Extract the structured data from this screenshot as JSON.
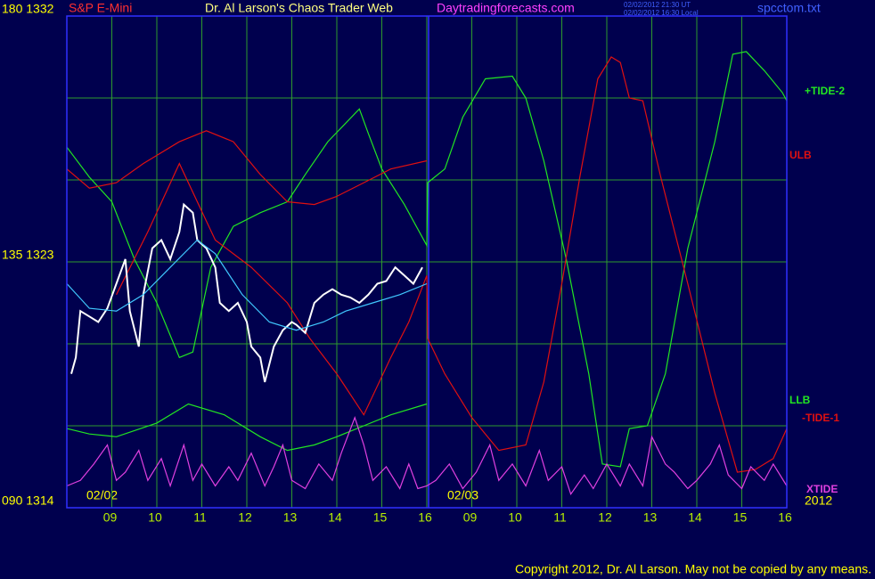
{
  "chart_data": {
    "type": "line",
    "title": "Dr. Al Larson's Chaos Trader Web",
    "instrument": "S&P E-Mini",
    "site": "Daytradingforecasts.com",
    "timestamps": [
      "02/02/2012 21:30 UT",
      "02/02/2012 16:30 Local"
    ],
    "file": "spcctom.txt",
    "date_labels": [
      "02/02",
      "02/03"
    ],
    "year": "2012",
    "copyright": "Copyright 2012, Dr. Al Larson. May not be copied by any means.",
    "xlim": [
      0,
      16
    ],
    "xticks": [
      {
        "value": 1,
        "label": "09"
      },
      {
        "value": 2,
        "label": "10"
      },
      {
        "value": 3,
        "label": "11"
      },
      {
        "value": 4,
        "label": "12"
      },
      {
        "value": 5,
        "label": "13"
      },
      {
        "value": 6,
        "label": "14"
      },
      {
        "value": 7,
        "label": "15"
      },
      {
        "value": 8,
        "label": "16"
      },
      {
        "value": 9,
        "label": "09"
      },
      {
        "value": 10,
        "label": "10"
      },
      {
        "value": 11,
        "label": "11"
      },
      {
        "value": 12,
        "label": "12"
      },
      {
        "value": 13,
        "label": "13"
      },
      {
        "value": 14,
        "label": "14"
      },
      {
        "value": 15,
        "label": "15"
      },
      {
        "value": 16,
        "label": "16"
      }
    ],
    "ylim": [
      1314,
      1332
    ],
    "yticks": [
      {
        "value": 1314,
        "label": "090 1314"
      },
      {
        "value": 1317,
        "label": null
      },
      {
        "value": 1320,
        "label": null
      },
      {
        "value": 1323,
        "label": "135 1323"
      },
      {
        "value": 1326,
        "label": null
      },
      {
        "value": 1329,
        "label": null
      },
      {
        "value": 1332,
        "label": "180 1332"
      }
    ],
    "grid": true,
    "series": [
      {
        "name": "+TIDE-2",
        "color": "#22e622",
        "x": [
          0,
          0.5,
          1.0,
          1.5,
          2.0,
          2.5,
          2.8,
          3.2,
          3.7,
          4.3,
          4.9,
          5.3,
          5.8,
          6.5,
          6.7,
          7.0,
          7.5,
          8.0,
          8.02,
          8.4,
          8.8,
          9.3,
          9.9,
          10.2,
          10.6,
          11.1,
          11.6,
          11.9,
          12.3,
          12.5,
          12.9,
          13.3,
          13.8,
          14.4,
          14.8,
          15.1,
          15.5,
          15.9,
          16.0
        ],
        "values": [
          1327.2,
          1326.1,
          1325.2,
          1323.1,
          1321.5,
          1319.5,
          1319.7,
          1322.8,
          1324.3,
          1324.8,
          1325.2,
          1326.2,
          1327.4,
          1328.6,
          1327.7,
          1326.4,
          1325.1,
          1323.6,
          1325.9,
          1326.4,
          1328.3,
          1329.7,
          1329.8,
          1329.0,
          1326.7,
          1323.1,
          1318.9,
          1315.6,
          1315.5,
          1316.9,
          1317.0,
          1318.9,
          1323.5,
          1327.4,
          1330.6,
          1330.7,
          1330.0,
          1329.2,
          1328.9
        ]
      },
      {
        "name": "ULB",
        "color": "#e01010",
        "x": [
          0,
          0.5,
          1.1,
          1.7,
          2.5,
          3.1,
          3.7,
          4.3,
          4.9,
          5.5,
          6.0,
          6.6,
          7.2,
          8.0
        ],
        "values": [
          1326.4,
          1325.7,
          1325.9,
          1326.6,
          1327.4,
          1327.8,
          1327.4,
          1326.2,
          1325.2,
          1325.1,
          1325.4,
          1325.9,
          1326.4,
          1326.7
        ]
      },
      {
        "name": "LLB",
        "color": "#22e622",
        "x": [
          0,
          0.5,
          1.1,
          2.0,
          2.7,
          3.5,
          4.3,
          4.9,
          5.5,
          6.0,
          6.6,
          7.2,
          8.0
        ],
        "values": [
          1316.9,
          1316.7,
          1316.6,
          1317.1,
          1317.8,
          1317.4,
          1316.6,
          1316.1,
          1316.3,
          1316.6,
          1317.0,
          1317.4,
          1317.8
        ]
      },
      {
        "name": "-TIDE-1",
        "color": "#e01010",
        "x": [
          1.1,
          1.8,
          2.5,
          3.3,
          4.1,
          4.9,
          5.4,
          6.0,
          6.6,
          7.2,
          7.6,
          8.0,
          8.02,
          8.4,
          9.0,
          9.6,
          10.2,
          10.6,
          11.0,
          11.4,
          11.8,
          12.1,
          12.3,
          12.5,
          12.8,
          13.2,
          13.8,
          14.4,
          14.9,
          15.3,
          15.7,
          16.0
        ],
        "values": [
          1321.8,
          1324.1,
          1326.6,
          1323.8,
          1322.8,
          1321.5,
          1320.2,
          1318.9,
          1317.4,
          1319.5,
          1320.8,
          1322.5,
          1320.2,
          1318.9,
          1317.3,
          1316.1,
          1316.3,
          1318.6,
          1322.2,
          1326.1,
          1329.7,
          1330.5,
          1330.3,
          1329.0,
          1328.9,
          1326.1,
          1322.2,
          1318.2,
          1315.3,
          1315.4,
          1315.8,
          1316.9
        ]
      },
      {
        "name": "XTIDE",
        "color": "#e040e0",
        "x": [
          0,
          0.3,
          0.6,
          0.9,
          1.1,
          1.3,
          1.6,
          1.8,
          2.1,
          2.3,
          2.6,
          2.8,
          3.0,
          3.3,
          3.6,
          3.8,
          4.1,
          4.4,
          4.6,
          4.8,
          5.0,
          5.3,
          5.6,
          5.9,
          6.1,
          6.4,
          6.6,
          6.8,
          7.1,
          7.4,
          7.6,
          7.8,
          8.0,
          8.2,
          8.5,
          8.8,
          9.1,
          9.4,
          9.6,
          9.9,
          10.2,
          10.5,
          10.7,
          11.0,
          11.2,
          11.5,
          11.7,
          12.0,
          12.3,
          12.5,
          12.8,
          13.0,
          13.3,
          13.5,
          13.8,
          14.0,
          14.3,
          14.5,
          14.7,
          15.0,
          15.2,
          15.5,
          15.7,
          16.0
        ],
        "values": [
          1314.8,
          1315.0,
          1315.6,
          1316.3,
          1315.0,
          1315.3,
          1316.1,
          1315.0,
          1315.8,
          1314.8,
          1316.3,
          1315.0,
          1315.6,
          1314.8,
          1315.5,
          1315.0,
          1316.0,
          1314.8,
          1315.5,
          1316.3,
          1315.0,
          1314.7,
          1315.6,
          1315.0,
          1316.0,
          1317.3,
          1316.3,
          1315.0,
          1315.5,
          1314.7,
          1315.6,
          1314.7,
          1314.8,
          1315.0,
          1315.6,
          1314.7,
          1315.3,
          1316.3,
          1315.0,
          1315.6,
          1314.8,
          1316.1,
          1315.0,
          1315.5,
          1314.5,
          1315.2,
          1314.7,
          1315.6,
          1314.8,
          1315.6,
          1314.8,
          1316.6,
          1315.6,
          1315.3,
          1314.7,
          1315.0,
          1315.6,
          1316.3,
          1315.2,
          1314.7,
          1315.5,
          1315.0,
          1315.6,
          1314.8
        ]
      },
      {
        "color": "#ffffff",
        "x": [
          0.1,
          0.2,
          0.3,
          0.5,
          0.7,
          0.9,
          1.1,
          1.3,
          1.4,
          1.6,
          1.7,
          1.9,
          2.1,
          2.3,
          2.5,
          2.6,
          2.8,
          2.9,
          3.1,
          3.3,
          3.4,
          3.6,
          3.8,
          4.0,
          4.1,
          4.3,
          4.4,
          4.6,
          4.8,
          5.0,
          5.1,
          5.3,
          5.5,
          5.7,
          5.9,
          6.1,
          6.3,
          6.5,
          6.7,
          6.9,
          7.1,
          7.3,
          7.5,
          7.7,
          7.9
        ],
        "values": [
          1318.9,
          1319.5,
          1321.2,
          1321.0,
          1320.8,
          1321.3,
          1322.2,
          1323.1,
          1321.2,
          1319.9,
          1321.8,
          1323.5,
          1323.8,
          1323.1,
          1324.1,
          1325.1,
          1324.8,
          1323.8,
          1323.5,
          1322.8,
          1321.5,
          1321.2,
          1321.5,
          1320.8,
          1319.9,
          1319.5,
          1318.6,
          1319.9,
          1320.5,
          1320.8,
          1320.7,
          1320.4,
          1321.5,
          1321.8,
          1322.0,
          1321.8,
          1321.7,
          1321.5,
          1321.8,
          1322.2,
          1322.3,
          1322.8,
          1322.5,
          1322.2,
          1322.8
        ]
      },
      {
        "color": "#40c8ff",
        "x": [
          0,
          0.5,
          1.1,
          1.7,
          2.3,
          2.9,
          3.3,
          3.9,
          4.5,
          5.1,
          5.7,
          6.2,
          6.8,
          7.4,
          8.0
        ],
        "values": [
          1322.2,
          1321.3,
          1321.2,
          1321.8,
          1322.8,
          1323.8,
          1323.3,
          1321.8,
          1320.8,
          1320.5,
          1320.8,
          1321.2,
          1321.5,
          1321.8,
          1322.2
        ]
      }
    ]
  }
}
